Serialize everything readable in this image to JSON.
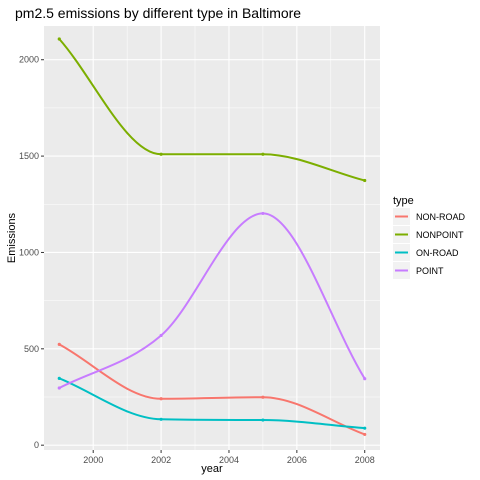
{
  "chart_data": {
    "type": "line",
    "title": "pm2.5 emissions by different type in Baltimore",
    "xlabel": "year",
    "ylabel": "Emissions",
    "x": [
      1999,
      2002,
      2005,
      2008
    ],
    "xlim": [
      1998.55,
      2008.45
    ],
    "ylim": [
      -25,
      2175
    ],
    "xticks": [
      2000,
      2002,
      2004,
      2006,
      2008
    ],
    "yticks": [
      0,
      500,
      1000,
      1500,
      2000
    ],
    "grid": true,
    "legend_position": "right",
    "legend_title": "type",
    "series": [
      {
        "name": "NON-ROAD",
        "color": "#F8766D",
        "values": [
          522.9,
          240.8,
          248.9,
          55.8
        ]
      },
      {
        "name": "NONPOINT",
        "color": "#7CAE00",
        "values": [
          2107.6,
          1509.5,
          1509.5,
          1373.2
        ]
      },
      {
        "name": "ON-ROAD",
        "color": "#00BFC4",
        "values": [
          346.8,
          134.3,
          130.4,
          88.3
        ]
      },
      {
        "name": "POINT",
        "color": "#C77CFF",
        "values": [
          296.8,
          569.3,
          1202.5,
          344.98
        ]
      }
    ]
  }
}
